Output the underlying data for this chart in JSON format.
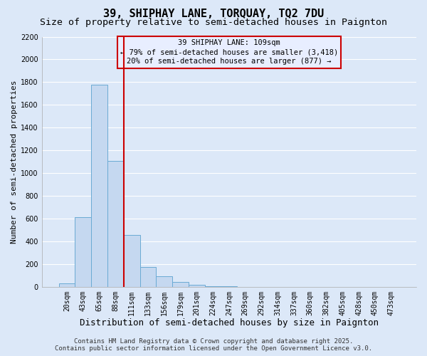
{
  "title": "39, SHIPHAY LANE, TORQUAY, TQ2 7DU",
  "subtitle": "Size of property relative to semi-detached houses in Paignton",
  "bar_labels": [
    "20sqm",
    "43sqm",
    "65sqm",
    "88sqm",
    "111sqm",
    "133sqm",
    "156sqm",
    "179sqm",
    "201sqm",
    "224sqm",
    "247sqm",
    "269sqm",
    "292sqm",
    "314sqm",
    "337sqm",
    "360sqm",
    "382sqm",
    "405sqm",
    "428sqm",
    "450sqm",
    "473sqm"
  ],
  "bar_values": [
    30,
    615,
    1775,
    1110,
    455,
    175,
    90,
    45,
    20,
    5,
    2,
    1,
    0,
    0,
    0,
    0,
    0,
    0,
    0,
    0,
    0
  ],
  "bar_color": "#c5d8f0",
  "bar_edgecolor": "#6aaad4",
  "vline_position": 3.5,
  "vline_color": "#cc0000",
  "annotation_text": "39 SHIPHAY LANE: 109sqm\n← 79% of semi-detached houses are smaller (3,418)\n20% of semi-detached houses are larger (877) →",
  "annotation_box_edgecolor": "#cc0000",
  "annotation_box_facecolor": "#e8eeff",
  "xlabel": "Distribution of semi-detached houses by size in Paignton",
  "ylabel": "Number of semi-detached properties",
  "ylim": [
    0,
    2200
  ],
  "yticks": [
    0,
    200,
    400,
    600,
    800,
    1000,
    1200,
    1400,
    1600,
    1800,
    2000,
    2200
  ],
  "background_color": "#dce8f8",
  "plot_bg_color": "#dce8f8",
  "grid_color": "#ffffff",
  "footer_line1": "Contains HM Land Registry data © Crown copyright and database right 2025.",
  "footer_line2": "Contains public sector information licensed under the Open Government Licence v3.0.",
  "title_fontsize": 11,
  "subtitle_fontsize": 9.5,
  "xlabel_fontsize": 9,
  "ylabel_fontsize": 8,
  "tick_fontsize": 7,
  "annotation_fontsize": 7.5,
  "footer_fontsize": 6.5
}
